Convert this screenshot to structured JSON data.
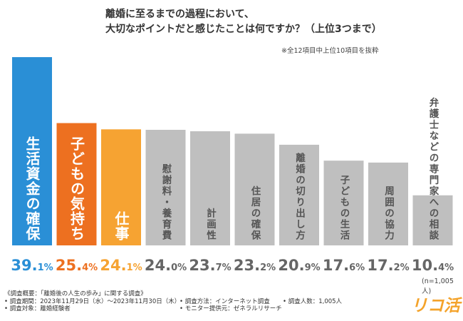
{
  "title": {
    "line1": "離婚に至るまでの過程において、",
    "line2": "大切なポイントだと感じたことは何ですか？（上位3つまで）"
  },
  "note": "※全12項目中上位10項目を抜粋",
  "sample_note": "(n=1,005人)",
  "brand": "リコ活",
  "colors": {
    "blue": "#2a8fd6",
    "orange": "#ed7020",
    "amber": "#f6a332",
    "gray": "#bfbfbf",
    "gray_text": "#666666"
  },
  "footer": {
    "line1": "《調査概要：「離婚後の人生の歩み」に関する調査》",
    "line2": "• 調査期間：2023年11月29日（水）～2023年11月30日（木）",
    "line3": "• 調査対象：離婚経験者",
    "method": "• 調査方法：インターネット調査",
    "provider": "• モニター提供元：ゼネラルリサーチ",
    "count": "• 調査人数：1,005人"
  },
  "chart_data": {
    "type": "bar",
    "title": "離婚に至るまでの過程において、大切なポイントだと感じたことは何ですか？（上位3つまで）",
    "categories": [
      "生活資金の確保",
      "子どもの気持ち",
      "仕事",
      "慰謝料・養育費",
      "計画性",
      "住居の確保",
      "離婚の切り出し方",
      "子どもの生活",
      "周囲の協力",
      "弁護士などの専門家への相談"
    ],
    "values": [
      39.1,
      25.4,
      24.1,
      24.0,
      23.7,
      23.2,
      20.9,
      17.6,
      17.2,
      10.4
    ],
    "unit": "%",
    "ylim": [
      0,
      40
    ],
    "xlabel": "",
    "ylabel": ""
  }
}
